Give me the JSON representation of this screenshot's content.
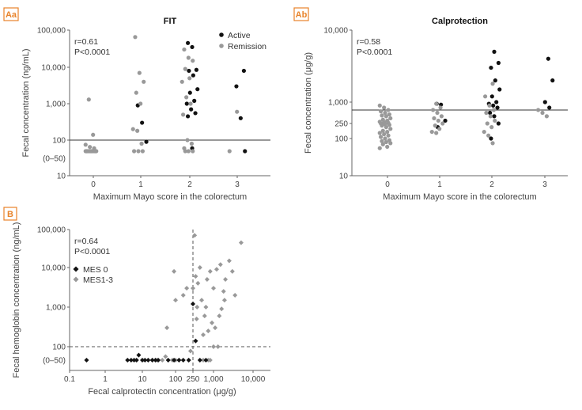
{
  "chart_data": [
    {
      "panel": "Aa",
      "type": "scatter",
      "title": "FIT",
      "xlabel": "Maximum Mayo score in the colorectum",
      "ylabel": "Fecal concentration (ng/mL)",
      "y_scale": "log",
      "categories": [
        "0",
        "1",
        "2",
        "3"
      ],
      "ylim": [
        10,
        100000
      ],
      "yticks": [
        "10",
        "(0–50)",
        "100",
        "1,000",
        "10,000",
        "100,000"
      ],
      "stats": [
        "r=0.61",
        "P<0.0001"
      ],
      "threshold": 100,
      "legend": {
        "position": "top-right",
        "colors": [
          "#111111",
          "#999999"
        ]
      },
      "series": [
        {
          "name": "Active",
          "color": "#111111",
          "points": [
            [
              1,
              900
            ],
            [
              1,
              300
            ],
            [
              1,
              90
            ],
            [
              2,
              45000
            ],
            [
              2,
              35000
            ],
            [
              2,
              8500
            ],
            [
              2,
              8000
            ],
            [
              2,
              6000
            ],
            [
              2,
              2500
            ],
            [
              2,
              2000
            ],
            [
              2,
              1200
            ],
            [
              2,
              1000
            ],
            [
              2,
              700
            ],
            [
              2,
              550
            ],
            [
              2,
              450
            ],
            [
              2,
              60
            ],
            [
              3,
              8000
            ],
            [
              3,
              3000
            ],
            [
              3,
              400
            ],
            [
              3,
              50
            ]
          ]
        },
        {
          "name": "Remission",
          "color": "#999999",
          "points": [
            [
              0,
              1300
            ],
            [
              0,
              140
            ],
            [
              0,
              75
            ],
            [
              0,
              65
            ],
            [
              0,
              60
            ],
            [
              0,
              50
            ],
            [
              0,
              50
            ],
            [
              0,
              50
            ],
            [
              0,
              50
            ],
            [
              0,
              50
            ],
            [
              0,
              50
            ],
            [
              0,
              50
            ],
            [
              0,
              50
            ],
            [
              0,
              50
            ],
            [
              0,
              50
            ],
            [
              0,
              50
            ],
            [
              0,
              50
            ],
            [
              0,
              50
            ],
            [
              0,
              50
            ],
            [
              1,
              65000
            ],
            [
              1,
              7000
            ],
            [
              1,
              4000
            ],
            [
              1,
              2000
            ],
            [
              1,
              1000
            ],
            [
              1,
              200
            ],
            [
              1,
              180
            ],
            [
              1,
              80
            ],
            [
              1,
              50
            ],
            [
              1,
              50
            ],
            [
              1,
              50
            ],
            [
              2,
              30000
            ],
            [
              2,
              18000
            ],
            [
              2,
              15000
            ],
            [
              2,
              9000
            ],
            [
              2,
              5000
            ],
            [
              2,
              4000
            ],
            [
              2,
              1500
            ],
            [
              2,
              1000
            ],
            [
              2,
              500
            ],
            [
              2,
              100
            ],
            [
              2,
              80
            ],
            [
              2,
              60
            ],
            [
              2,
              50
            ],
            [
              2,
              50
            ],
            [
              2,
              50
            ],
            [
              3,
              600
            ],
            [
              3,
              50
            ]
          ]
        }
      ]
    },
    {
      "panel": "Ab",
      "type": "scatter",
      "title": "Calprotection",
      "xlabel": "Maximum Mayo score in the colorectum",
      "ylabel": "Fecal concentration (μg/g)",
      "y_scale": "log",
      "categories": [
        "0",
        "1",
        "2",
        "3"
      ],
      "ylim": [
        10,
        10000
      ],
      "yticks": [
        "10",
        "100",
        "250",
        "1,000",
        "10,000"
      ],
      "stats": [
        "r=0.58",
        "P<0.0001"
      ],
      "threshold": 600,
      "series": [
        {
          "name": "",
          "color": "#111111",
          "points": [
            [
              1,
              900
            ],
            [
              1,
              850
            ],
            [
              1,
              300
            ],
            [
              1,
              200
            ],
            [
              2,
              5000
            ],
            [
              2,
              3500
            ],
            [
              2,
              3000
            ],
            [
              2,
              2000
            ],
            [
              2,
              1500
            ],
            [
              2,
              1200
            ],
            [
              2,
              1000
            ],
            [
              2,
              900
            ],
            [
              2,
              800
            ],
            [
              2,
              700
            ],
            [
              2,
              500
            ],
            [
              2,
              400
            ],
            [
              2,
              250
            ],
            [
              2,
              100
            ],
            [
              3,
              4000
            ],
            [
              3,
              2000
            ],
            [
              3,
              1000
            ],
            [
              3,
              700
            ]
          ]
        },
        {
          "name": "",
          "color": "#999999",
          "points": [
            [
              0,
              800
            ],
            [
              0,
              700
            ],
            [
              0,
              600
            ],
            [
              0,
              550
            ],
            [
              0,
              500
            ],
            [
              0,
              450
            ],
            [
              0,
              420
            ],
            [
              0,
              400
            ],
            [
              0,
              350
            ],
            [
              0,
              320
            ],
            [
              0,
              300
            ],
            [
              0,
              280
            ],
            [
              0,
              270
            ],
            [
              0,
              260
            ],
            [
              0,
              250
            ],
            [
              0,
              240
            ],
            [
              0,
              230
            ],
            [
              0,
              220
            ],
            [
              0,
              200
            ],
            [
              0,
              180
            ],
            [
              0,
              160
            ],
            [
              0,
              150
            ],
            [
              0,
              140
            ],
            [
              0,
              130
            ],
            [
              0,
              120
            ],
            [
              0,
              110
            ],
            [
              0,
              100
            ],
            [
              0,
              90
            ],
            [
              0,
              85
            ],
            [
              0,
              80
            ],
            [
              0,
              75
            ],
            [
              0,
              70
            ],
            [
              0,
              60
            ],
            [
              0,
              55
            ],
            [
              1,
              900
            ],
            [
              1,
              700
            ],
            [
              1,
              600
            ],
            [
              1,
              500
            ],
            [
              1,
              400
            ],
            [
              1,
              350
            ],
            [
              1,
              300
            ],
            [
              1,
              250
            ],
            [
              1,
              220
            ],
            [
              1,
              180
            ],
            [
              1,
              150
            ],
            [
              1,
              140
            ],
            [
              2,
              1800
            ],
            [
              2,
              1200
            ],
            [
              2,
              800
            ],
            [
              2,
              600
            ],
            [
              2,
              500
            ],
            [
              2,
              400
            ],
            [
              2,
              300
            ],
            [
              2,
              250
            ],
            [
              2,
              200
            ],
            [
              2,
              150
            ],
            [
              2,
              120
            ],
            [
              2,
              75
            ],
            [
              3,
              600
            ],
            [
              3,
              500
            ],
            [
              3,
              400
            ]
          ]
        }
      ]
    },
    {
      "panel": "B",
      "type": "scatter",
      "xlabel": "Fecal calprotectin concentration (μg/g)",
      "ylabel": "Fecal hemoglobin concentration (ng/mL)",
      "x_scale": "log",
      "y_scale": "log",
      "xlim": [
        0.1,
        10000
      ],
      "ylim": [
        10,
        100000
      ],
      "xticks": [
        "0.1",
        "1",
        "10",
        "100",
        "250",
        "1,000",
        "10,000"
      ],
      "yticks": [
        "(0–50)",
        "100",
        "1,000",
        "10,000",
        "100,000"
      ],
      "stats": [
        "r=0.64",
        "P<0.0001"
      ],
      "ref_lines": {
        "x": 250,
        "y": 100
      },
      "legend": {
        "position": "middle-left",
        "colors": [
          "#111111",
          "#999999"
        ]
      },
      "series": [
        {
          "name": "MES 0",
          "color": "#111111",
          "points": [
            [
              0.3,
              50
            ],
            [
              4,
              50
            ],
            [
              5,
              50
            ],
            [
              6,
              50
            ],
            [
              7,
              50
            ],
            [
              8,
              65
            ],
            [
              10,
              50
            ],
            [
              12,
              50
            ],
            [
              15,
              50
            ],
            [
              20,
              50
            ],
            [
              25,
              50
            ],
            [
              30,
              50
            ],
            [
              60,
              50
            ],
            [
              90,
              50
            ],
            [
              120,
              50
            ],
            [
              150,
              50
            ],
            [
              200,
              50
            ],
            [
              250,
              1200
            ],
            [
              300,
              140
            ],
            [
              400,
              50
            ],
            [
              600,
              50
            ]
          ]
        },
        {
          "name": "MES1-3",
          "color": "#999999",
          "points": [
            [
              20,
              50
            ],
            [
              25,
              50
            ],
            [
              30,
              50
            ],
            [
              40,
              50
            ],
            [
              50,
              60
            ],
            [
              55,
              300
            ],
            [
              60,
              50
            ],
            [
              80,
              50
            ],
            [
              90,
              8000
            ],
            [
              100,
              1500
            ],
            [
              100,
              50
            ],
            [
              120,
              50
            ],
            [
              150,
              2000
            ],
            [
              180,
              3000
            ],
            [
              200,
              50
            ],
            [
              220,
              80
            ],
            [
              250,
              3000
            ],
            [
              280,
              70000
            ],
            [
              300,
              6000
            ],
            [
              320,
              500
            ],
            [
              330,
              1000
            ],
            [
              350,
              4000
            ],
            [
              400,
              10000
            ],
            [
              450,
              1500
            ],
            [
              500,
              200
            ],
            [
              500,
              50
            ],
            [
              550,
              600
            ],
            [
              600,
              1000
            ],
            [
              650,
              5000
            ],
            [
              700,
              250
            ],
            [
              800,
              8000
            ],
            [
              900,
              400
            ],
            [
              1000,
              3000
            ],
            [
              1200,
              9000
            ],
            [
              1300,
              100
            ],
            [
              1500,
              12000
            ],
            [
              1800,
              2500
            ],
            [
              2000,
              5000
            ],
            [
              2500,
              15000
            ],
            [
              3000,
              8000
            ],
            [
              3500,
              2000
            ],
            [
              5000,
              45000
            ],
            [
              700,
              50
            ],
            [
              800,
              50
            ],
            [
              1000,
              100
            ],
            [
              1100,
              300
            ],
            [
              1400,
              600
            ],
            [
              1600,
              900
            ],
            [
              1900,
              1500
            ]
          ]
        }
      ]
    }
  ],
  "panels": {
    "aa_label": "Aa",
    "ab_label": "Ab",
    "b_label": "B"
  }
}
